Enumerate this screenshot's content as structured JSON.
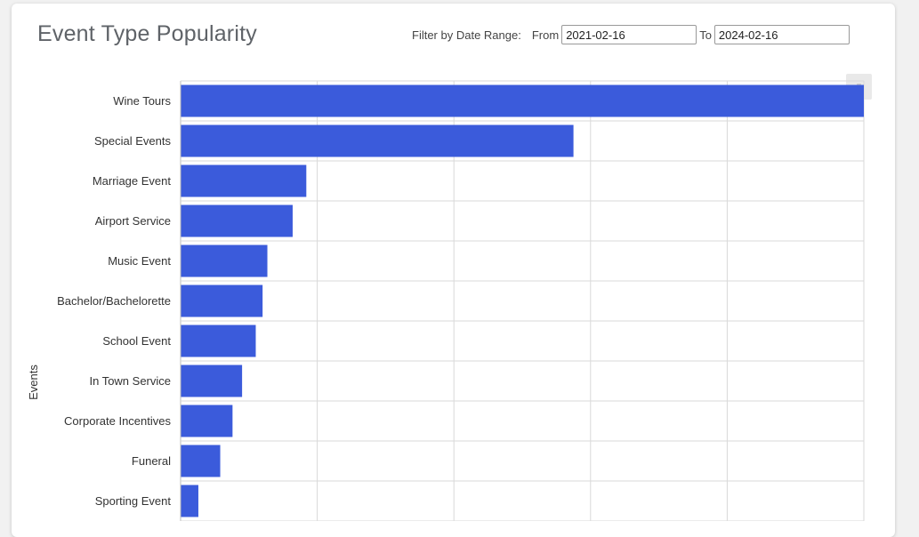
{
  "header": {
    "title": "Event Type Popularity"
  },
  "filter": {
    "label": "Filter by Date Range:",
    "from_label": "From",
    "from_value": "2021-02-16",
    "to_label": "To",
    "to_value": "2024-02-16"
  },
  "colors": {
    "bar": "#3b5bdb",
    "grid": "#d9d9d9"
  },
  "chart_data": {
    "type": "bar",
    "orientation": "horizontal",
    "ylabel": "Events",
    "categories": [
      "Wine Tours",
      "Special Events",
      "Marriage Event",
      "Airport Service",
      "Music Event",
      "Bachelor/Bachelorette",
      "School Event",
      "In Town Service",
      "Corporate Incentives",
      "Funeral",
      "Sporting Event"
    ],
    "values": [
      100,
      57.5,
      18.4,
      16.4,
      12.7,
      12.0,
      11.0,
      9.0,
      7.6,
      5.8,
      2.6
    ],
    "xlim": [
      0,
      100
    ],
    "grid": true
  }
}
